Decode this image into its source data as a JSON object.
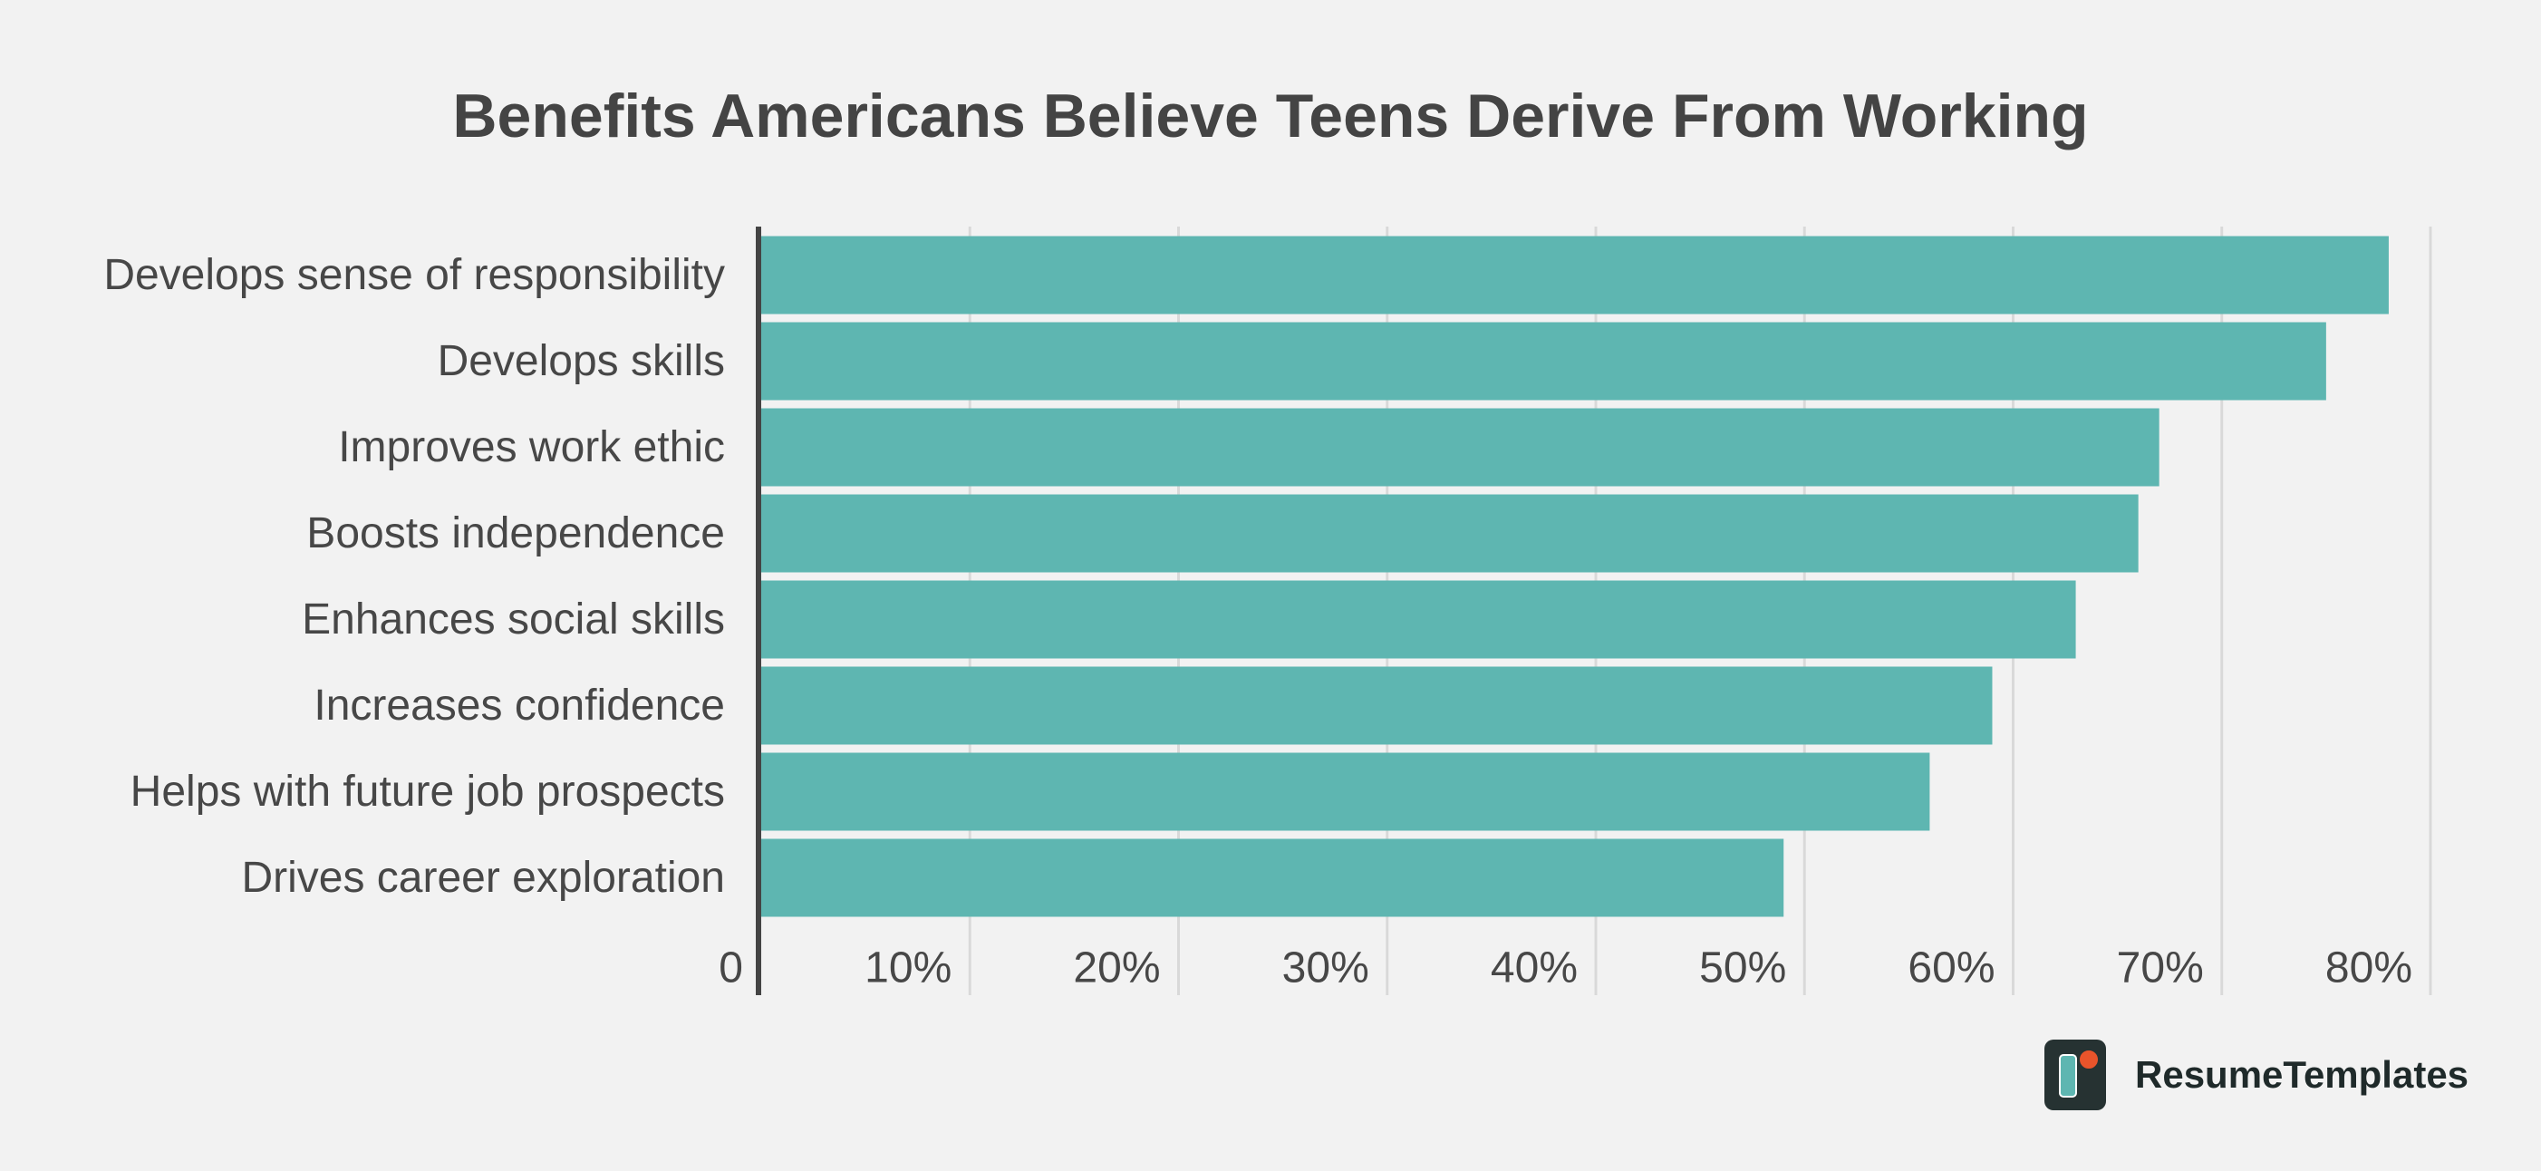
{
  "brand": {
    "name": "ResumeTemplates",
    "accent_color": "#5eb6b1",
    "dot_color": "#e9542b",
    "dark_color": "#263232"
  },
  "chart_data": {
    "type": "bar",
    "orientation": "horizontal",
    "title": "Benefits Americans Believe Teens Derive From Working",
    "xlabel": "",
    "ylabel": "",
    "categories": [
      "Develops sense of responsibility",
      "Develops skills",
      "Improves work ethic",
      "Boosts independence",
      "Enhances social skills",
      "Increases confidence",
      "Helps with future job prospects",
      "Drives career exploration"
    ],
    "values": [
      78,
      75,
      67,
      66,
      63,
      59,
      56,
      49
    ],
    "value_unit": "%",
    "xlim": [
      0,
      80
    ],
    "x_ticks": [
      0,
      10,
      20,
      30,
      40,
      50,
      60,
      70,
      80
    ],
    "x_tick_labels": [
      "0",
      "10%",
      "20%",
      "30%",
      "40%",
      "50%",
      "60%",
      "70%",
      "80%"
    ],
    "bar_color": "#5eb6b1",
    "grid": true,
    "legend": "none"
  }
}
